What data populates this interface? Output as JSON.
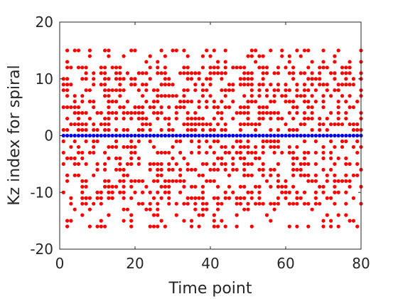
{
  "chart_data": {
    "type": "scatter",
    "title": "",
    "xlabel": "Time point",
    "ylabel": "Kz index for spiral",
    "xlim": [
      0,
      80
    ],
    "ylim": [
      -20,
      20
    ],
    "x_ticks": [
      "0",
      "20",
      "40",
      "60",
      "80"
    ],
    "y_ticks": [
      "-20",
      "-10",
      "0",
      "10",
      "20"
    ],
    "grid": false,
    "legend": "none",
    "series": [
      {
        "color": "#ff0000",
        "marker": "dot",
        "x_range": [
          1,
          80
        ],
        "y_range": [
          -16,
          15
        ],
        "occupancy_per_time_point": 0.45,
        "pattern": "random subset of integer kz indices at every time point"
      },
      {
        "color": "#0000ff",
        "marker": "dot",
        "x_range": [
          1,
          80
        ],
        "y_value": 0,
        "pattern": "constant kz = 0 at every time point"
      }
    ]
  }
}
